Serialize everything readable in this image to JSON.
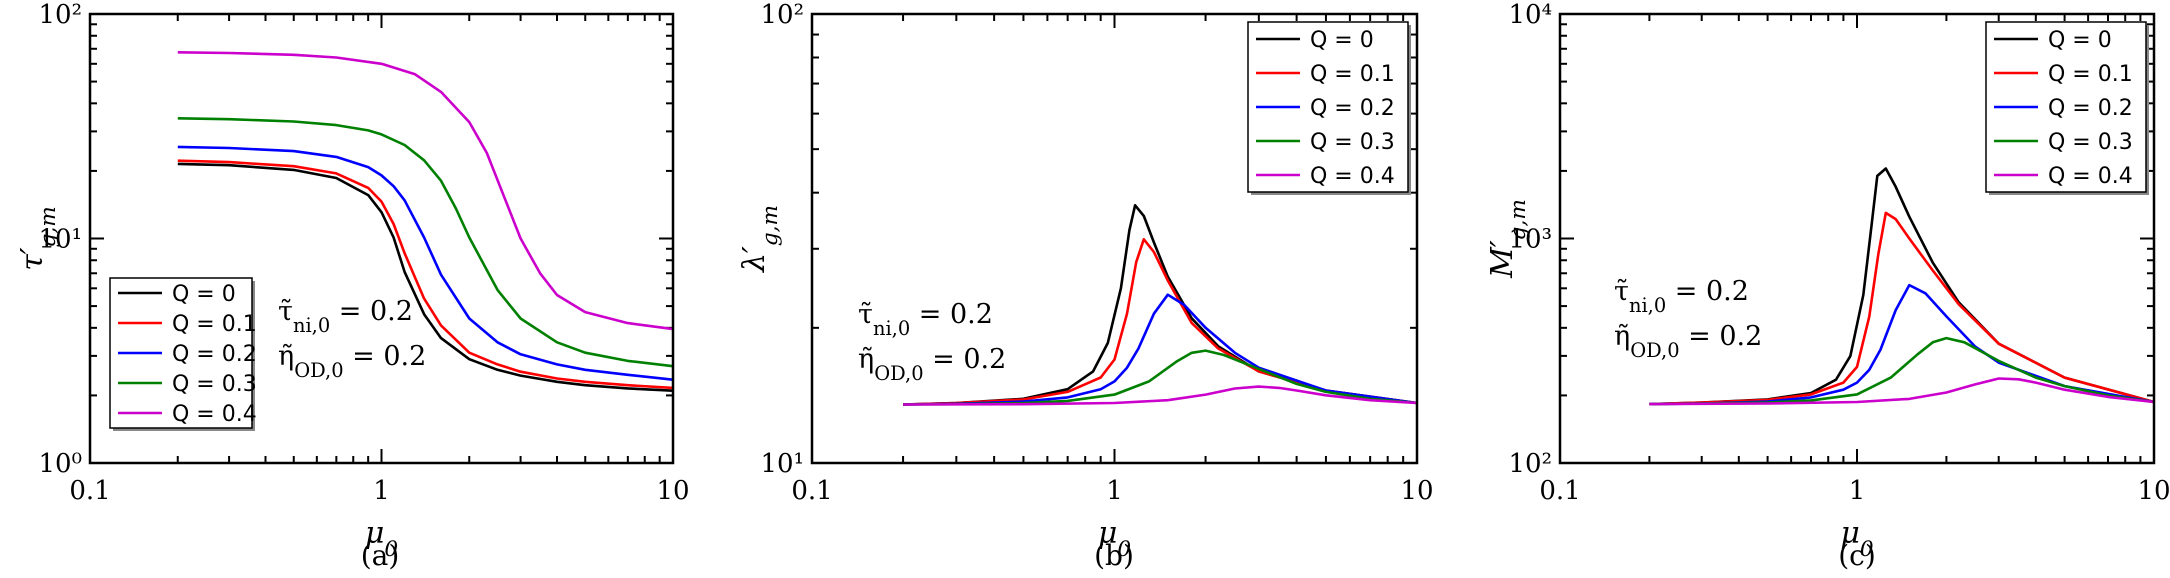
{
  "chart_data": [
    {
      "type": "line",
      "panel_label": "(a)",
      "xlabel": "μ0",
      "ylabel": "τ′g,m",
      "xscale": "log",
      "yscale": "log",
      "xlim": [
        0.1,
        10
      ],
      "ylim": [
        1,
        100
      ],
      "xticks": [
        "0.1",
        "1",
        "10"
      ],
      "yticks": [
        "10⁰",
        "10¹",
        "10²"
      ],
      "legend_position": "lower-left",
      "annotations": [
        "τ̃ni,0 = 0.2",
        "η̃OD,0 = 0.2"
      ],
      "series": [
        {
          "name": "Q = 0",
          "color": "#000000",
          "x": [
            0.2,
            0.3,
            0.5,
            0.7,
            0.9,
            1.0,
            1.1,
            1.2,
            1.4,
            1.6,
            2,
            2.5,
            3,
            4,
            5,
            7,
            10
          ],
          "y": [
            21.5,
            21.2,
            20.2,
            18.6,
            15.6,
            13.1,
            10.1,
            7.1,
            4.6,
            3.6,
            2.9,
            2.6,
            2.45,
            2.3,
            2.22,
            2.15,
            2.1
          ]
        },
        {
          "name": "Q = 0.1",
          "color": "#ff0000",
          "x": [
            0.2,
            0.3,
            0.5,
            0.7,
            0.9,
            1.0,
            1.1,
            1.2,
            1.4,
            1.6,
            2,
            2.5,
            3,
            4,
            5,
            7,
            10
          ],
          "y": [
            22.2,
            21.9,
            21.0,
            19.5,
            16.8,
            14.6,
            11.6,
            8.6,
            5.4,
            4.1,
            3.1,
            2.75,
            2.55,
            2.38,
            2.3,
            2.22,
            2.16
          ]
        },
        {
          "name": "Q = 0.2",
          "color": "#0000ff",
          "x": [
            0.2,
            0.3,
            0.5,
            0.7,
            0.9,
            1.0,
            1.1,
            1.2,
            1.4,
            1.6,
            2,
            2.5,
            3,
            4,
            5,
            7,
            10
          ],
          "y": [
            25.6,
            25.3,
            24.5,
            23.1,
            20.8,
            19.1,
            17.1,
            14.8,
            10.1,
            6.9,
            4.4,
            3.45,
            3.05,
            2.75,
            2.6,
            2.47,
            2.35
          ]
        },
        {
          "name": "Q = 0.3",
          "color": "#008000",
          "x": [
            0.2,
            0.3,
            0.5,
            0.7,
            0.9,
            1.0,
            1.2,
            1.4,
            1.6,
            1.8,
            2,
            2.5,
            3,
            4,
            5,
            7,
            10
          ],
          "y": [
            34.3,
            34.0,
            33.2,
            32.0,
            30.3,
            29.1,
            26.1,
            22.3,
            18.1,
            13.6,
            10.1,
            5.9,
            4.4,
            3.45,
            3.1,
            2.85,
            2.7
          ]
        },
        {
          "name": "Q = 0.4",
          "color": "#cc00cc",
          "x": [
            0.2,
            0.3,
            0.5,
            0.7,
            1.0,
            1.3,
            1.6,
            2,
            2.3,
            2.6,
            3,
            3.5,
            4,
            5,
            7,
            10
          ],
          "y": [
            67.5,
            67.0,
            65.8,
            64.0,
            60.0,
            54.0,
            45.0,
            33.0,
            24.0,
            16.0,
            10.0,
            7.0,
            5.6,
            4.7,
            4.2,
            3.95
          ]
        }
      ]
    },
    {
      "type": "line",
      "panel_label": "(b)",
      "xlabel": "μ0",
      "ylabel": "λ′g,m",
      "xscale": "log",
      "yscale": "log",
      "xlim": [
        0.1,
        10
      ],
      "ylim": [
        10,
        100
      ],
      "xticks": [
        "0.1",
        "1",
        "10"
      ],
      "yticks": [
        "10¹",
        "10²"
      ],
      "legend_position": "top-right",
      "annotations": [
        "τ̃ni,0 = 0.2",
        "η̃OD,0 = 0.2"
      ],
      "series": [
        {
          "name": "Q = 0",
          "color": "#000000",
          "x": [
            0.2,
            0.3,
            0.5,
            0.7,
            0.85,
            0.95,
            1.05,
            1.12,
            1.17,
            1.25,
            1.35,
            1.5,
            1.8,
            2.2,
            3,
            5,
            10
          ],
          "y": [
            13.5,
            13.6,
            13.9,
            14.6,
            16.0,
            18.5,
            24.5,
            33.0,
            37.5,
            35.5,
            31.0,
            26.0,
            21.0,
            18.2,
            16.0,
            14.5,
            13.6
          ]
        },
        {
          "name": "Q = 0.1",
          "color": "#ff0000",
          "x": [
            0.2,
            0.3,
            0.5,
            0.7,
            0.9,
            1.0,
            1.1,
            1.18,
            1.25,
            1.35,
            1.5,
            1.8,
            2.2,
            3,
            5,
            10
          ],
          "y": [
            13.5,
            13.6,
            13.85,
            14.4,
            15.5,
            17.0,
            21.5,
            28.0,
            31.5,
            29.5,
            25.5,
            20.5,
            18.0,
            16.0,
            14.5,
            13.6
          ]
        },
        {
          "name": "Q = 0.2",
          "color": "#0000ff",
          "x": [
            0.2,
            0.3,
            0.5,
            0.7,
            0.9,
            1.0,
            1.1,
            1.2,
            1.35,
            1.5,
            1.7,
            2.0,
            2.5,
            3,
            5,
            10
          ],
          "y": [
            13.5,
            13.55,
            13.7,
            14.0,
            14.6,
            15.2,
            16.3,
            18.0,
            21.5,
            23.7,
            22.5,
            20.0,
            17.6,
            16.3,
            14.5,
            13.6
          ]
        },
        {
          "name": "Q = 0.3",
          "color": "#008000",
          "x": [
            0.2,
            0.3,
            0.5,
            0.7,
            1.0,
            1.3,
            1.6,
            1.8,
            2.0,
            2.3,
            3,
            4,
            5,
            7,
            10
          ],
          "y": [
            13.5,
            13.52,
            13.6,
            13.75,
            14.2,
            15.2,
            16.8,
            17.6,
            17.8,
            17.4,
            16.2,
            15.0,
            14.4,
            13.9,
            13.6
          ]
        },
        {
          "name": "Q = 0.4",
          "color": "#cc00cc",
          "x": [
            0.2,
            0.5,
            1.0,
            1.5,
            2.0,
            2.5,
            3.0,
            3.5,
            4,
            5,
            7,
            10
          ],
          "y": [
            13.5,
            13.52,
            13.6,
            13.8,
            14.2,
            14.65,
            14.8,
            14.7,
            14.5,
            14.15,
            13.8,
            13.6
          ]
        }
      ]
    },
    {
      "type": "line",
      "panel_label": "(c)",
      "xlabel": "μ0",
      "ylabel": "M′g,m",
      "xscale": "log",
      "yscale": "log",
      "xlim": [
        0.1,
        10
      ],
      "ylim": [
        100,
        10000
      ],
      "xticks": [
        "0.1",
        "1",
        "10"
      ],
      "yticks": [
        "10²",
        "10³",
        "10⁴"
      ],
      "legend_position": "top-right",
      "annotations": [
        "τ̃ni,0 = 0.2",
        "η̃OD,0 = 0.2"
      ],
      "series": [
        {
          "name": "Q = 0",
          "color": "#000000",
          "x": [
            0.2,
            0.3,
            0.5,
            0.7,
            0.85,
            0.95,
            1.05,
            1.12,
            1.17,
            1.25,
            1.35,
            1.5,
            1.8,
            2.2,
            3,
            5,
            10
          ],
          "y": [
            183,
            186,
            192,
            205,
            235,
            300,
            560,
            1150,
            1900,
            2050,
            1700,
            1250,
            780,
            520,
            340,
            240,
            187
          ]
        },
        {
          "name": "Q = 0.1",
          "color": "#ff0000",
          "x": [
            0.2,
            0.3,
            0.5,
            0.7,
            0.9,
            1.0,
            1.1,
            1.18,
            1.25,
            1.35,
            1.5,
            1.8,
            2.2,
            3,
            5,
            10
          ],
          "y": [
            183,
            186,
            191,
            202,
            228,
            268,
            450,
            850,
            1300,
            1220,
            1000,
            720,
            510,
            340,
            240,
            187
          ]
        },
        {
          "name": "Q = 0.2",
          "color": "#0000ff",
          "x": [
            0.2,
            0.3,
            0.5,
            0.7,
            0.9,
            1.0,
            1.1,
            1.2,
            1.35,
            1.5,
            1.7,
            2.0,
            2.5,
            3,
            5,
            10
          ],
          "y": [
            183,
            184,
            188,
            196,
            212,
            228,
            260,
            320,
            480,
            620,
            570,
            450,
            330,
            280,
            220,
            187
          ]
        },
        {
          "name": "Q = 0.3",
          "color": "#008000",
          "x": [
            0.2,
            0.3,
            0.5,
            0.7,
            1.0,
            1.3,
            1.6,
            1.8,
            2.0,
            2.3,
            3,
            4,
            5,
            7,
            10
          ],
          "y": [
            183,
            184,
            186,
            190,
            202,
            240,
            305,
            345,
            360,
            345,
            285,
            240,
            220,
            200,
            187
          ]
        },
        {
          "name": "Q = 0.4",
          "color": "#cc00cc",
          "x": [
            0.2,
            0.5,
            1.0,
            1.5,
            2.0,
            2.5,
            3.0,
            3.5,
            4,
            5,
            7,
            10
          ],
          "y": [
            183,
            184,
            187,
            193,
            206,
            224,
            238,
            236,
            228,
            212,
            197,
            187
          ]
        }
      ]
    }
  ]
}
